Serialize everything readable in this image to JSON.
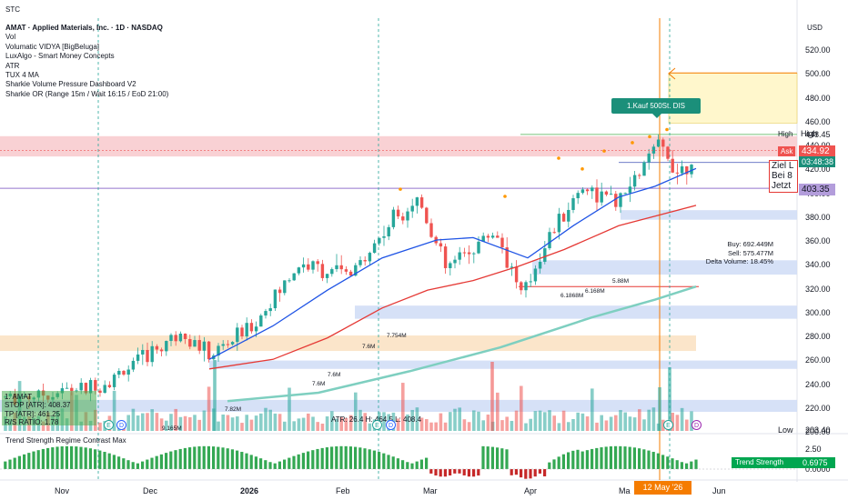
{
  "header": {
    "symbol": "STC",
    "currency": "USD",
    "main_title": "AMAT · Applied Materials, Inc. · 1D · NASDAQ",
    "indicators": [
      "Vol",
      "Volumatic VIDYA [BigBeluga]",
      "LuxAlgo - Smart Money Concepts",
      "ATR",
      "TUX 4 MA",
      "Sharkie Volume Pressure Dashboard V2",
      "Sharkie OR (Range 15m / Wait 16:15 / EoD 21:00)"
    ]
  },
  "price_axis": {
    "ticks": [
      "520.00",
      "500.00",
      "480.00",
      "460.00",
      "440.00",
      "420.00",
      "400.00",
      "380.00",
      "360.00",
      "340.00",
      "320.00",
      "300.00",
      "280.00",
      "260.00",
      "240.00",
      "220.00",
      "200.00"
    ],
    "high_label": "High",
    "high_value": "448.45",
    "ask_label": "Ask",
    "ask_value": "434.92",
    "countdown": "03:48:38",
    "level_value": "403.35",
    "low_label": "Low",
    "low_value": "203.40"
  },
  "indicator_axis": {
    "ticks": [
      "2.50",
      "0.0000"
    ],
    "title": "Trend Strength Regime Contrast Max",
    "badge_label": "Trend Strength",
    "badge_value": "0.6975"
  },
  "time_axis": {
    "labels": [
      "Nov",
      "Dec",
      "2026",
      "Feb",
      "Mar",
      "Apr",
      "Ma",
      "Jun"
    ],
    "highlight_date": "12 May '26"
  },
  "annotations": {
    "kauf": "1.Kauf  500St. DIS",
    "note_lines": [
      "Ziel L",
      "Bei 8",
      "Jetzt"
    ],
    "delta": [
      "Buy: 692.449M",
      "Sell: 575.477M",
      "Delta Volume: 18.45%"
    ],
    "stats": [
      "1. AMAT",
      "STOP [ATR]: 408.37",
      "TP [ATR]: 461.25",
      "R/S RATIO: 1.78"
    ],
    "atr_line": "ATR: 26.4   H: 464.5   L: 408.4",
    "vol_labels": [
      "7.754M",
      "7.6M",
      "7.6M",
      "7.6M",
      "7.82M",
      "9.165M",
      "5.88M",
      "6.168M",
      "6.1868M"
    ],
    "event_e": "E",
    "event_d": "D"
  },
  "colors": {
    "up": "#26a69a",
    "down": "#ef5350",
    "ma_blue": "#1e53e5",
    "ma_red": "#e53935",
    "ma_teal": "#7ecfc0",
    "orange": "#f57c00",
    "resistance_zone": "#f8c9cc",
    "demand_zone": "#cfdcf6",
    "supply_zone": "#fbe2c4",
    "target_zone": "#fff7cc"
  },
  "chart_data": {
    "type": "candlestick",
    "title": "AMAT · Applied Materials, Inc. · 1D · NASDAQ",
    "ylim": [
      200,
      530
    ],
    "x_categories": [
      "Nov",
      "Dec",
      "2026",
      "Feb",
      "Mar",
      "Apr",
      "May",
      "Jun"
    ],
    "high": 448.45,
    "low": 203.4,
    "last_price": 434.92,
    "level": 403.35,
    "target_price": 500.0,
    "key_points": [
      {
        "month": "Nov",
        "price": 225
      },
      {
        "month": "Dec",
        "price": 262
      },
      {
        "month": "2026",
        "price": 300
      },
      {
        "month": "Feb",
        "price": 335
      },
      {
        "month": "Mar",
        "price": 370
      },
      {
        "month": "Apr",
        "price": 350
      },
      {
        "month": "May",
        "price": 440
      }
    ]
  }
}
